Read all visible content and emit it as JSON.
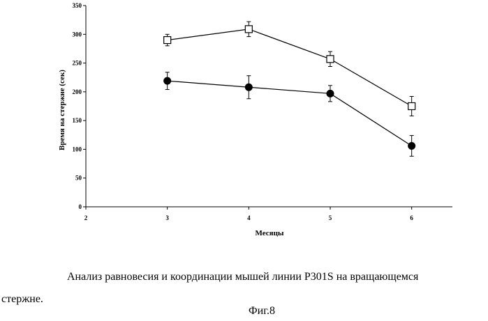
{
  "chart_data": {
    "type": "line",
    "xlabel": "Месяцы",
    "ylabel": "Время на стержне (сек)",
    "xlim": [
      2,
      6.5
    ],
    "ylim": [
      0,
      350
    ],
    "xticks": [
      2,
      3,
      4,
      5,
      6
    ],
    "yticks": [
      0,
      50,
      100,
      150,
      200,
      250,
      300,
      350
    ],
    "grid": false,
    "legend": "none",
    "x": [
      3,
      4,
      5,
      6
    ],
    "series": [
      {
        "marker": "open-square",
        "values": [
          290,
          309,
          257,
          175
        ],
        "errors": [
          10,
          13,
          13,
          17
        ]
      },
      {
        "marker": "filled-circle",
        "values": [
          219,
          208,
          197,
          106
        ],
        "errors": [
          15,
          20,
          14,
          18
        ]
      }
    ]
  },
  "caption": {
    "line1": "Анализ равновесия и координации мышей линии P301S на вращающемся",
    "line2": "стержне."
  },
  "figure_label": "Фиг.8"
}
